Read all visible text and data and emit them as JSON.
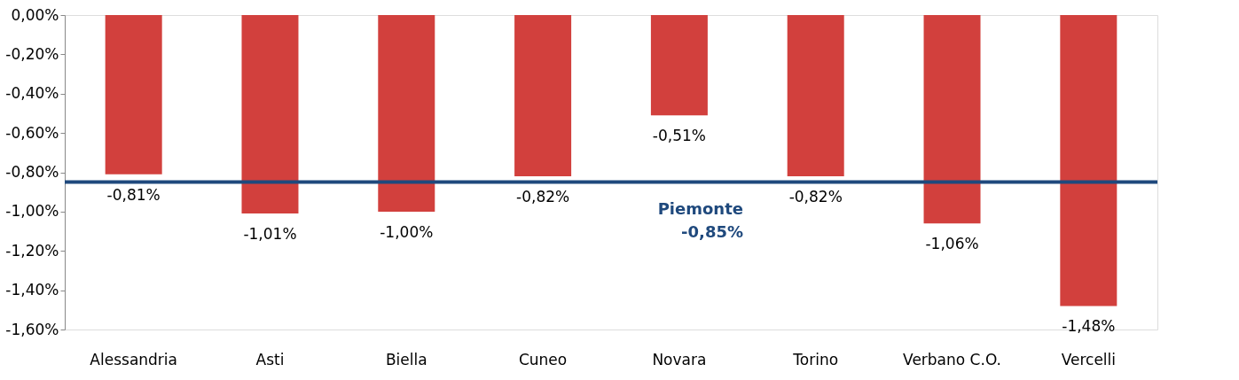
{
  "chart_data": {
    "type": "bar",
    "categories": [
      "Alessandria",
      "Asti",
      "Biella",
      "Cuneo",
      "Novara",
      "Torino",
      "Verbano C.O.",
      "Vercelli"
    ],
    "values": [
      -0.81,
      -1.01,
      -1.0,
      -0.82,
      -0.51,
      -0.82,
      -1.06,
      -1.48
    ],
    "color": "#d2403d",
    "value_labels": [
      "-0,81%",
      "-1,01%",
      "-1,00%",
      "-0,82%",
      "-0,51%",
      "-0,82%",
      "-1,06%",
      "-1,48%"
    ],
    "ylim": [
      -1.6,
      0
    ],
    "yticks": [
      {
        "value": 0,
        "label": "0,00%"
      },
      {
        "value": -0.2,
        "label": "-0,20%"
      },
      {
        "value": -0.4,
        "label": "-0,40%"
      },
      {
        "value": -0.6,
        "label": "-0,60%"
      },
      {
        "value": -0.8,
        "label": "-0,80%"
      },
      {
        "value": -1.0,
        "label": "-1,00%"
      },
      {
        "value": -1.2,
        "label": "-1,20%"
      },
      {
        "value": -1.4,
        "label": "-1,40%"
      },
      {
        "value": -1.6,
        "label": "-1,60%"
      }
    ],
    "ref_lines": [
      {
        "axis": "y",
        "value": -0.85,
        "label": "Piemonte\n-0,85%",
        "color": "#1f497d",
        "line_style": "solid"
      }
    ],
    "grid": false
  }
}
